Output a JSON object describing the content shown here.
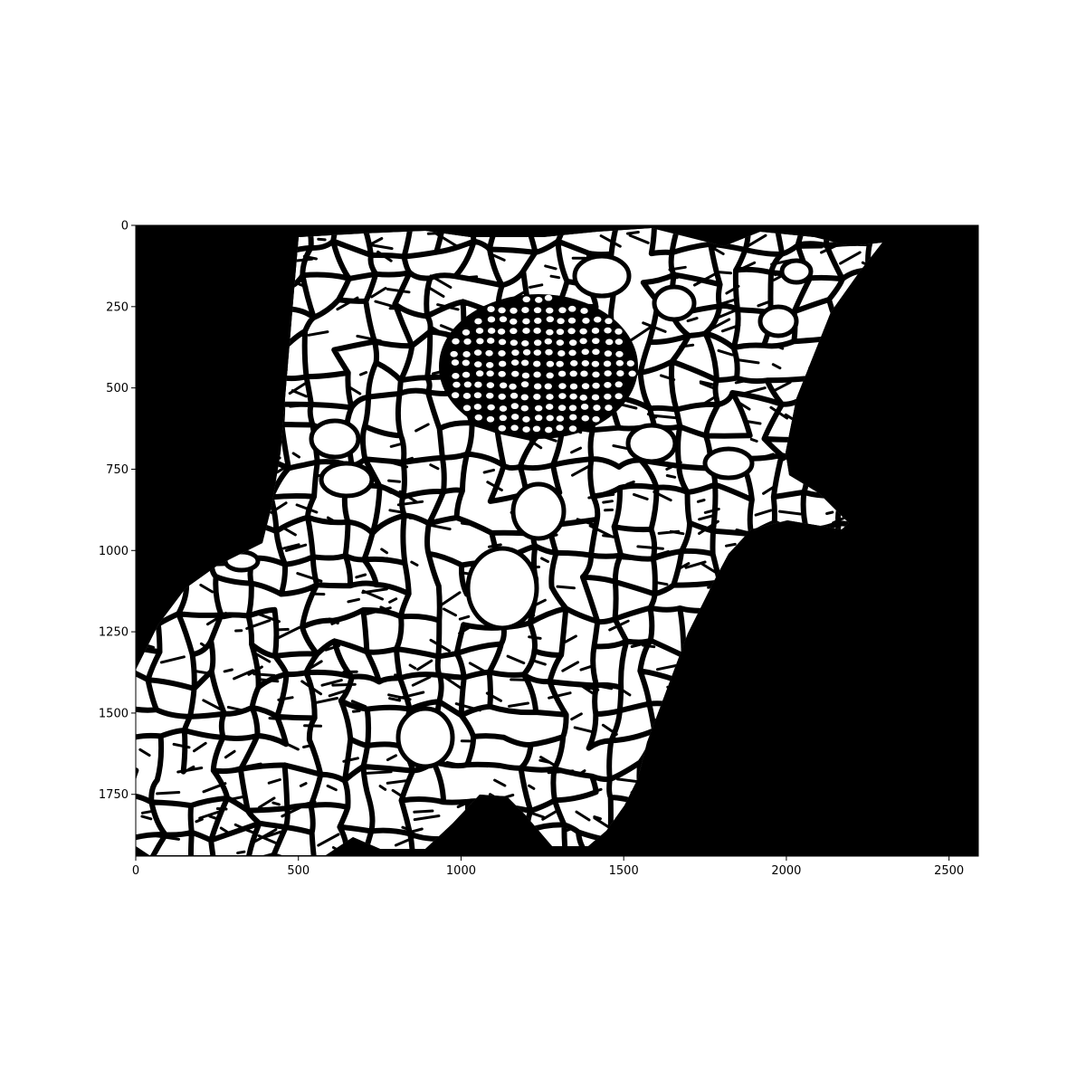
{
  "chart_data": {
    "type": "heatmap",
    "image_kind": "binary segmentation mask",
    "colors": {
      "foreground": "#ffffff",
      "background": "#000000",
      "axes": "#000000"
    },
    "xlim": [
      0,
      2590
    ],
    "ylim": [
      1940,
      0
    ],
    "y_axis_inverted": true,
    "grid": false,
    "legend": "none",
    "x_ticks": [
      0,
      500,
      1000,
      1500,
      2000,
      2500
    ],
    "y_ticks": [
      0,
      250,
      500,
      750,
      1000,
      1250,
      1500,
      1750
    ],
    "x_tick_labels": [
      "0",
      "500",
      "1000",
      "1500",
      "2000",
      "2500"
    ],
    "y_tick_labels": [
      "0",
      "250",
      "500",
      "750",
      "1000",
      "1250",
      "1500",
      "1750"
    ]
  }
}
